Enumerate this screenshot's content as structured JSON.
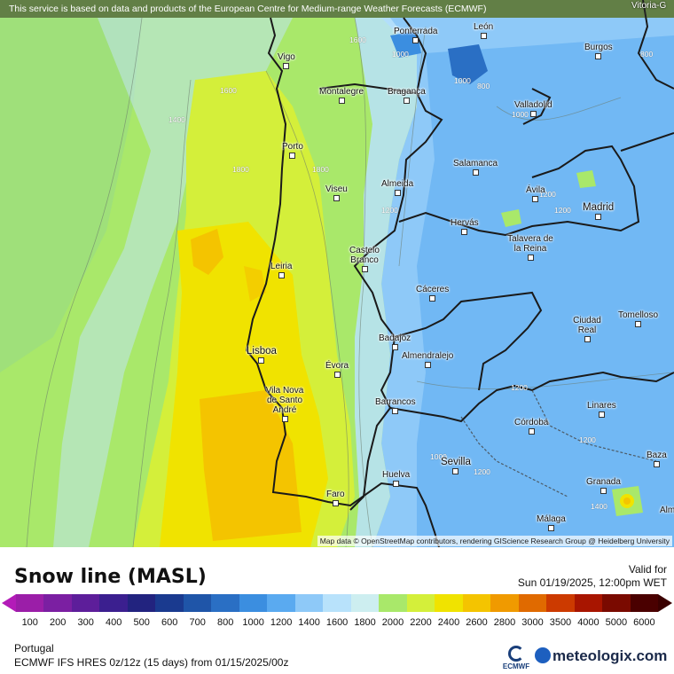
{
  "header": {
    "disclaimer": "This service is based on data and products of the European Centre for Medium-range Weather Forecasts (ECMWF)",
    "corner_label": "Vitoria-G"
  },
  "map": {
    "attribution": "Map data © OpenStreetMap contributors, rendering GIScience Research Group @ Heidelberg University",
    "cities": {
      "ponferrada": "Ponferrada",
      "leon": "León",
      "burgos": "Burgos",
      "vigo": "Vigo",
      "montalegre": "Montalegre",
      "braganca": "Bragança",
      "valladolid": "Valladolid",
      "porto": "Porto",
      "salamanca": "Salamanca",
      "viseu": "Viseu",
      "almeida": "Almeida",
      "avila": "Ávila",
      "madrid": "Madrid",
      "hervas": "Hervás",
      "talavera": "Talavera de la Reina",
      "leiria": "Leiria",
      "castelo_branco": "Castelo Branco",
      "caceres": "Cáceres",
      "ciudad_real": "Ciudad Real",
      "tomelloso": "Tomelloso",
      "lisboa": "Lisboa",
      "badajoz": "Badajoz",
      "almendralejo": "Almendralejo",
      "evora": "Évora",
      "vila_nova": "Vila Nova de Santo André",
      "barrancos": "Barrancos",
      "linares": "Linares",
      "cordoba": "Córdoba",
      "baza": "Baza",
      "sevilla": "Sevilla",
      "huelva": "Huelva",
      "faro": "Faro",
      "granada": "Granada",
      "malaga": "Málaga",
      "alm": "Alm"
    },
    "contour_labels": {
      "c1": "1600",
      "c2": "1000",
      "c3": "800",
      "c4": "1600",
      "c5": "1400",
      "c6": "1800",
      "c7": "1000",
      "c8": "1800",
      "c9": "1200",
      "c10": "1200",
      "c11": "1200",
      "c12": "1200",
      "c13": "1200",
      "c14": "1000",
      "c15": "1200",
      "c16": "1400",
      "c17": "1000",
      "c18": "800"
    }
  },
  "legend": {
    "title": "Snow line (MASL)",
    "valid_label": "Valid for",
    "valid_time": "Sun 01/19/2025, 12:00pm WET",
    "ticks": [
      "100",
      "200",
      "300",
      "400",
      "500",
      "600",
      "700",
      "800",
      "1000",
      "1200",
      "1400",
      "1600",
      "1800",
      "2000",
      "2200",
      "2400",
      "2600",
      "2800",
      "3000",
      "3500",
      "4000",
      "5000",
      "6000"
    ],
    "colors": [
      "#9b1ea8",
      "#7b1fa2",
      "#5d1e9a",
      "#3b1f8f",
      "#22237f",
      "#1a3a8f",
      "#1f55a8",
      "#2a6fc4",
      "#3b8ee0",
      "#5aaaf0",
      "#8ec9f8",
      "#b8e2fb",
      "#cdeef0",
      "#a9e86a",
      "#d4ef3a",
      "#f0e300",
      "#f4c400",
      "#f09a00",
      "#e06a00",
      "#cc3a00",
      "#a81500",
      "#7a0a00",
      "#4a0000"
    ],
    "region": "Portugal",
    "model": "ECMWF IFS HRES 0z/12z (15 days) from  01/15/2025/00z"
  },
  "branding": {
    "ecmwf": "ECMWF",
    "meteologix": "meteologix.com"
  }
}
